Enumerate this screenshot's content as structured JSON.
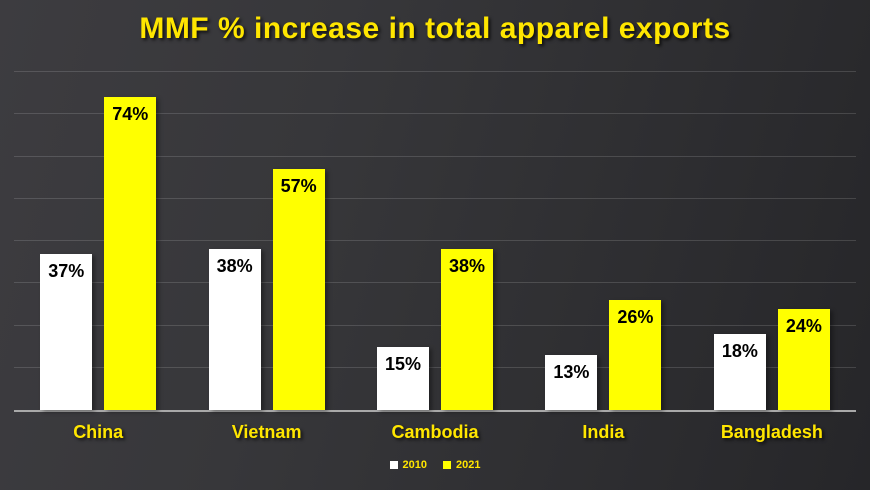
{
  "slide": {
    "background_left": "#3d3c40",
    "background_right": "#262629",
    "text_yellow": "#ffe600",
    "gridline_color": "rgba(255,255,255,0.14)",
    "axis_line_color": "#a9a9a9"
  },
  "chart_data": {
    "type": "bar",
    "title": "MMF % increase in total apparel exports",
    "title_color": "#ffe600",
    "categories": [
      "China",
      "Vietnam",
      "Cambodia",
      "India",
      "Bangladesh"
    ],
    "series": [
      {
        "name": "2010",
        "color": "#ffffff",
        "values": [
          37,
          38,
          15,
          13,
          18
        ]
      },
      {
        "name": "2021",
        "color": "#ffff00",
        "values": [
          74,
          57,
          38,
          26,
          24
        ]
      }
    ],
    "value_suffix": "%",
    "data_label_color": "#000000",
    "ylim": [
      0,
      80
    ],
    "grid_step": 10,
    "grid": "horizontal only, no y-axis tick labels",
    "legend_position": "bottom-center",
    "xlabel": "",
    "ylabel": ""
  }
}
